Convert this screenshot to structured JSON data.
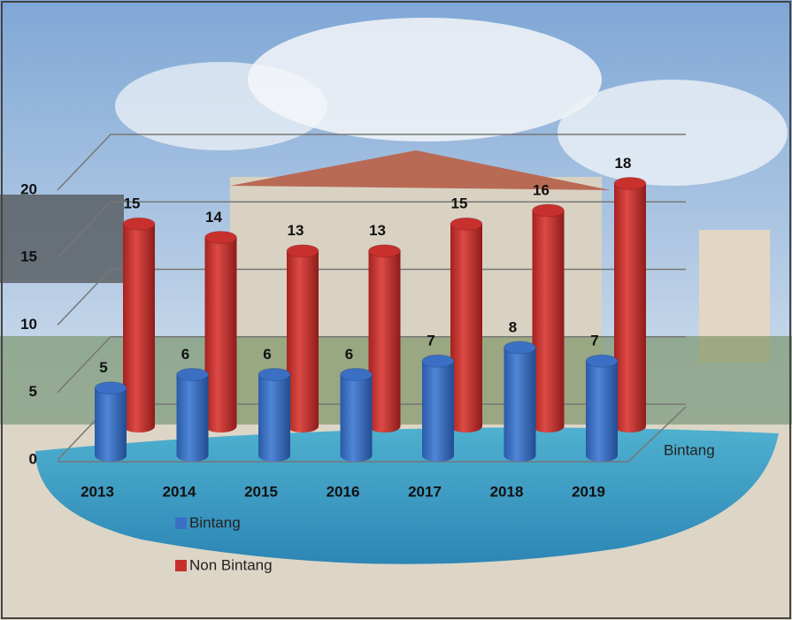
{
  "chart_data": {
    "type": "bar",
    "categories": [
      "2013",
      "2014",
      "2015",
      "2016",
      "2017",
      "2018",
      "2019"
    ],
    "series": [
      {
        "name": "Bintang",
        "color": "#3a6fc4",
        "values": [
          5,
          6,
          6,
          6,
          7,
          8,
          7
        ]
      },
      {
        "name": "Non Bintang",
        "color": "#c8302e",
        "values": [
          15,
          14,
          13,
          13,
          15,
          16,
          18
        ]
      }
    ],
    "depth_axis_label": "Bintang",
    "ylim": [
      0,
      20
    ],
    "yticks": [
      0,
      5,
      10,
      15,
      20
    ],
    "grid": true,
    "legend": "bottom"
  }
}
